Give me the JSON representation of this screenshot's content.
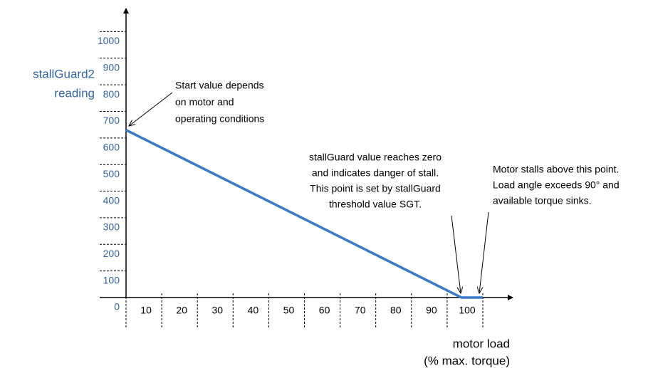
{
  "chart_data": {
    "type": "line",
    "ylabel": [
      "stallGuard2",
      "reading"
    ],
    "xlabel": [
      "motor load",
      "(% max. torque)"
    ],
    "x": [
      0,
      94,
      100
    ],
    "series": [
      {
        "color": "#3a78c8",
        "values": [
          630,
          0,
          0
        ]
      }
    ],
    "xlim": [
      0,
      100
    ],
    "ylim": [
      0,
      1000
    ],
    "xticks": [
      10,
      20,
      30,
      40,
      50,
      60,
      70,
      80,
      90,
      100
    ],
    "yticks": [
      0,
      100,
      200,
      300,
      400,
      500,
      600,
      700,
      800,
      900,
      1000
    ],
    "annotations": [
      [
        "Start value depends",
        "on motor and",
        "operating conditions"
      ],
      [
        "stallGuard value reaches zero",
        "and indicates danger of stall.",
        "This point is set by stallGuard",
        "threshold value SGT."
      ],
      [
        "Motor stalls above this point.",
        "Load angle exceeds 90° and",
        "available torque sinks."
      ]
    ]
  }
}
